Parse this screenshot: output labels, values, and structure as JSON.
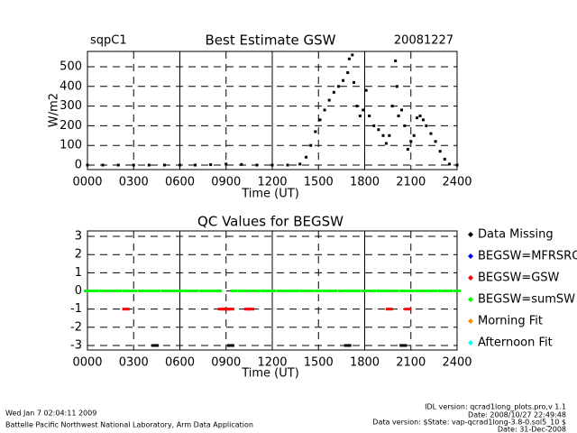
{
  "chart_data": [
    {
      "type": "scatter",
      "title": "Best Estimate GSW",
      "site": "sqpC1",
      "date": "20081227",
      "xlabel": "Time (UT)",
      "ylabel": "W/m2",
      "color": "#000000",
      "grid": true,
      "x": [
        0,
        1,
        2,
        3,
        4,
        5,
        6,
        7,
        8,
        9,
        10,
        11,
        12,
        13,
        13.8,
        14.2,
        14.5,
        14.8,
        15.1,
        15.4,
        15.7,
        16.0,
        16.3,
        16.6,
        16.9,
        17.0,
        17.2,
        17.3,
        17.5,
        17.7,
        17.9,
        18.1,
        18.3,
        18.6,
        18.9,
        19.2,
        19.4,
        19.6,
        19.8,
        20.0,
        20.1,
        20.2,
        20.4,
        20.6,
        20.8,
        21.0,
        21.2,
        21.4,
        21.6,
        21.8,
        22.0,
        22.3,
        22.6,
        22.9,
        23.2,
        23.5,
        24
      ],
      "values": [
        0,
        0,
        0,
        0,
        0,
        0,
        0,
        0,
        2,
        5,
        3,
        0,
        0,
        0,
        5,
        40,
        100,
        170,
        230,
        280,
        330,
        370,
        400,
        430,
        470,
        540,
        560,
        420,
        300,
        250,
        280,
        380,
        250,
        200,
        180,
        150,
        110,
        150,
        300,
        530,
        400,
        250,
        280,
        200,
        80,
        120,
        150,
        240,
        250,
        230,
        200,
        160,
        120,
        70,
        30,
        5,
        0
      ],
      "xlim": [
        0,
        24
      ],
      "xticks": [
        {
          "value": 0,
          "label": "0000"
        },
        {
          "value": 3,
          "label": "0300"
        },
        {
          "value": 6,
          "label": "0600"
        },
        {
          "value": 9,
          "label": "0900"
        },
        {
          "value": 12,
          "label": "1200"
        },
        {
          "value": 15,
          "label": "1500"
        },
        {
          "value": 18,
          "label": "1800"
        },
        {
          "value": 21,
          "label": "2100"
        },
        {
          "value": 24,
          "label": "2400"
        }
      ],
      "ylim": [
        -23,
        578
      ],
      "yticks": [
        0,
        100,
        200,
        300,
        400,
        500
      ]
    },
    {
      "type": "scatter",
      "title": "QC Values for BEGSW",
      "xlabel": "Time (UT)",
      "grid": true,
      "legend": "right",
      "series": [
        {
          "name": "Data Missing",
          "color": "#000000",
          "x": [
            4.4,
            9.3,
            16.9,
            20.5
          ],
          "values": [
            -3,
            -3,
            -3,
            -3
          ]
        },
        {
          "name": "BEGSW=MFRSRG",
          "color": "#0000ff",
          "x": [],
          "values": []
        },
        {
          "name": "BEGSW=GSW",
          "color": "#ff0000",
          "x": [
            2.5,
            8.7,
            8.9,
            9.1,
            9.3,
            10.4,
            10.6,
            19.6,
            20.8
          ],
          "values": [
            -1,
            -1,
            -1,
            -1,
            -1,
            -1,
            -1,
            -1,
            -1
          ]
        },
        {
          "name": "BEGSW=sumSW",
          "color": "#00ff00",
          "x": [
            0,
            0.5,
            1,
            1.5,
            2,
            2.5,
            3,
            3.5,
            4,
            4.5,
            5,
            5.5,
            6,
            6.5,
            7,
            7.5,
            8,
            8.5,
            9.5,
            10,
            10.5,
            11,
            11.5,
            12,
            12.5,
            13,
            13.5,
            14,
            14.5,
            15,
            15.5,
            16,
            16.5,
            17,
            17.5,
            18,
            18.5,
            19,
            19.5,
            20,
            20.5,
            21,
            21.5,
            22,
            22.5,
            23,
            23.5,
            24
          ],
          "values": [
            0,
            0,
            0,
            0,
            0,
            0,
            0,
            0,
            0,
            0,
            0,
            0,
            0,
            0,
            0,
            0,
            0,
            0,
            0,
            0,
            0,
            0,
            0,
            0,
            0,
            0,
            0,
            0,
            0,
            0,
            0,
            0,
            0,
            0,
            0,
            0,
            0,
            0,
            0,
            0,
            0,
            0,
            0,
            0,
            0,
            0,
            0,
            0
          ]
        },
        {
          "name": "Morning Fit",
          "color": "#ff8c00",
          "x": [],
          "values": []
        },
        {
          "name": "Afternoon Fit",
          "color": "#00ffff",
          "x": [],
          "values": []
        }
      ],
      "xlim": [
        0,
        24
      ],
      "xticks": [
        {
          "value": 0,
          "label": "0000"
        },
        {
          "value": 3,
          "label": "0300"
        },
        {
          "value": 6,
          "label": "0600"
        },
        {
          "value": 9,
          "label": "0900"
        },
        {
          "value": 12,
          "label": "1200"
        },
        {
          "value": 15,
          "label": "1500"
        },
        {
          "value": 18,
          "label": "1800"
        },
        {
          "value": 21,
          "label": "2100"
        },
        {
          "value": 24,
          "label": "2400"
        }
      ],
      "ylim": [
        -3.25,
        3.3
      ],
      "yticks": [
        -3,
        -2,
        -1,
        0,
        1,
        2,
        3
      ]
    }
  ],
  "footer": {
    "timestamp": "Wed Jan  7 02:04:11 2009",
    "lab": "Battelle Pacific Northwest National Laboratory, Arm Data Application",
    "idl_version": "IDL version: qcrad1long_plots.pro,v 1.1",
    "idl_date": "Date: 2008/10/27 22:49:48",
    "data_version": "Data version: $State: vap-qcrad1long-3.8-0.sol5_10 $",
    "data_date": "Date: 31-Dec-2008"
  }
}
